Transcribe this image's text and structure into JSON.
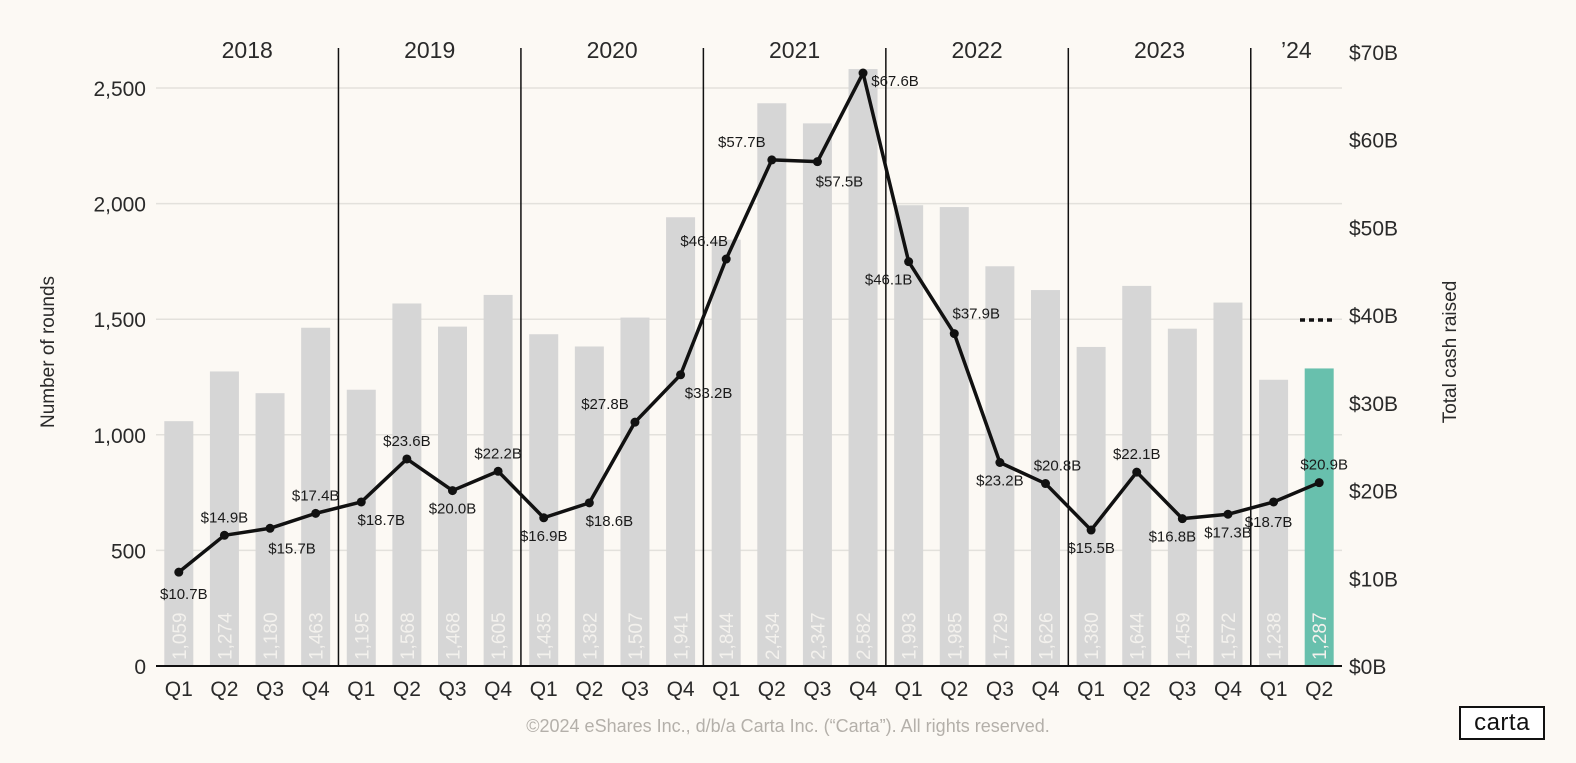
{
  "chart_data": {
    "type": "bar+line",
    "years": [
      "2018",
      "2019",
      "2020",
      "2021",
      "2022",
      "2023",
      "’24"
    ],
    "categories": [
      "Q1",
      "Q2",
      "Q3",
      "Q4",
      "Q1",
      "Q2",
      "Q3",
      "Q4",
      "Q1",
      "Q2",
      "Q3",
      "Q4",
      "Q1",
      "Q2",
      "Q3",
      "Q4",
      "Q1",
      "Q2",
      "Q3",
      "Q4",
      "Q1",
      "Q2",
      "Q3",
      "Q4",
      "Q1",
      "Q2"
    ],
    "series": [
      {
        "name": "Number of rounds",
        "type": "bar",
        "values": [
          1059,
          1274,
          1180,
          1463,
          1195,
          1568,
          1468,
          1605,
          1435,
          1382,
          1507,
          1941,
          1844,
          2434,
          2347,
          2582,
          1993,
          1985,
          1729,
          1626,
          1380,
          1644,
          1459,
          1572,
          1238,
          1287
        ],
        "labels": [
          "1,059",
          "1,274",
          "1,180",
          "1,463",
          "1,195",
          "1,568",
          "1,468",
          "1,605",
          "1,435",
          "1,382",
          "1,507",
          "1,941",
          "1,844",
          "2,434",
          "2,347",
          "2,582",
          "1,993",
          "1,985",
          "1,729",
          "1,626",
          "1,380",
          "1,644",
          "1,459",
          "1,572",
          "1,238",
          "1,287"
        ],
        "highlight_index": 25
      },
      {
        "name": "Total cash raised",
        "type": "line",
        "axis": "right",
        "values": [
          10.7,
          14.9,
          15.7,
          17.4,
          18.7,
          23.6,
          20.0,
          22.2,
          16.9,
          18.6,
          27.8,
          33.2,
          46.4,
          57.7,
          57.5,
          67.6,
          46.1,
          37.9,
          23.2,
          20.8,
          15.5,
          22.1,
          16.8,
          17.3,
          18.7,
          20.9
        ],
        "labels": [
          "$10.7B",
          "$14.9B",
          "$15.7B",
          "$17.4B",
          "$18.7B",
          "$23.6B",
          "$20.0B",
          "$22.2B",
          "$16.9B",
          "$18.6B",
          "$27.8B",
          "$33.2B",
          "$46.4B",
          "$57.7B",
          "$57.5B",
          "$67.6B",
          "$46.1B",
          "$37.9B",
          "$23.2B",
          "$20.8B",
          "$15.5B",
          "$22.1B",
          "$16.8B",
          "$17.3B",
          "$18.7B",
          "$20.9B"
        ]
      }
    ],
    "ylabel": "Number of rounds",
    "y2label": "Total cash raised",
    "ylim": [
      0,
      2600
    ],
    "y2lim": [
      0,
      70
    ],
    "yticks": [
      0,
      500,
      1000,
      1500,
      2000,
      2500
    ],
    "ytick_labels": [
      "0",
      "500",
      "1,000",
      "1,500",
      "2,000",
      "2,500"
    ],
    "y2ticks": [
      0,
      10,
      20,
      30,
      40,
      50,
      60,
      70
    ],
    "y2tick_labels": [
      "$0B",
      "$10B",
      "$20B",
      "$30B",
      "$40B",
      "$50B",
      "$60B",
      "$70B"
    ],
    "grid": true,
    "colors": {
      "bar": "#d6d6d6",
      "bar_highlight": "#68c0ad",
      "line": "#111111",
      "grid": "#e3e1dc"
    },
    "dotted_marker": true
  },
  "footer": "©2024 eShares Inc., d/b/a Carta Inc. (“Carta”). All rights reserved.",
  "logo_text": "carta"
}
